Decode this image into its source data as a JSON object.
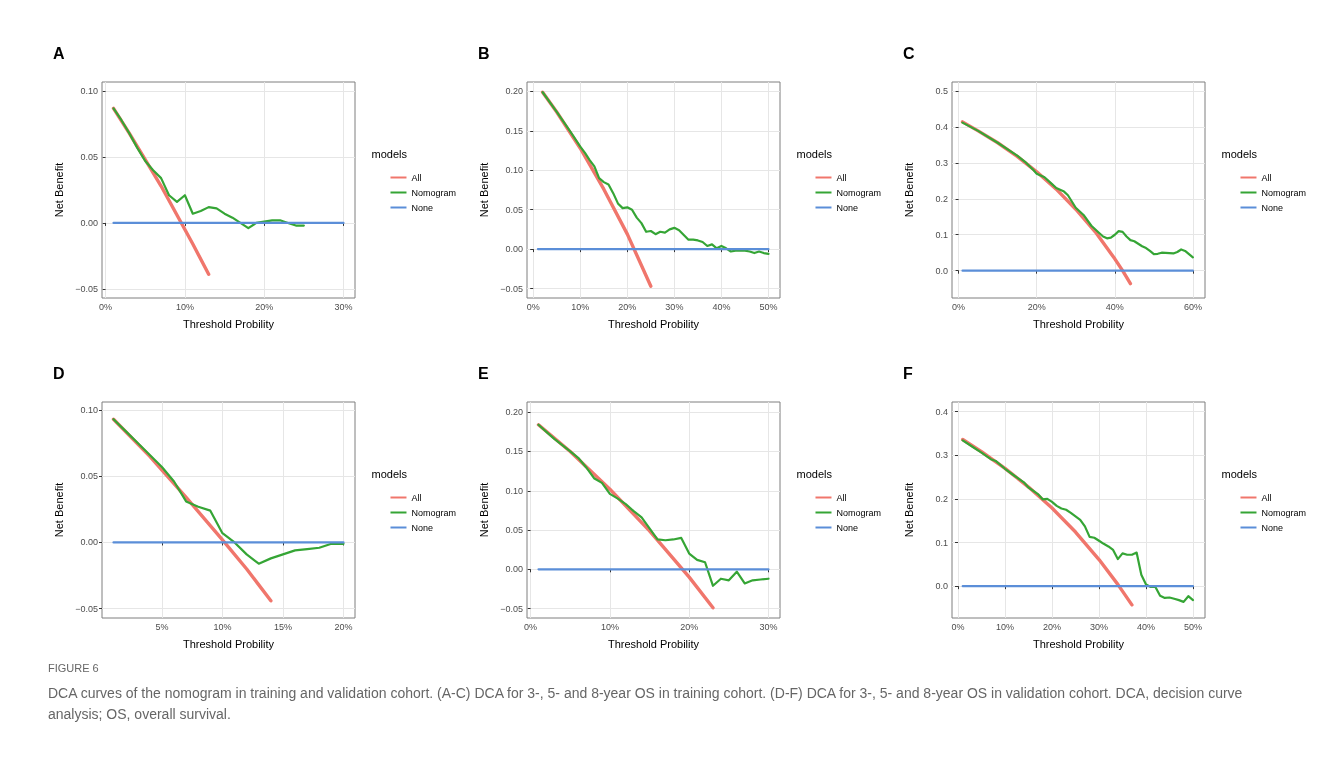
{
  "chart_data": [
    {
      "type": "line",
      "title": "A",
      "xlabel": "Threshold Probility",
      "ylabel": "Net Benefit",
      "legend_title": "models",
      "legend": "right",
      "grid": true,
      "marker": "none",
      "line_style": "solid",
      "annotations": [
        "FIGURE 6",
        "DCA curves of the nomogram in training and validation cohort. (A-C) DCA for 3-, 5- and 8-year OS in training cohort. (D-F) DCA for 3-, 5- and 8-year OS in validation cohort. DCA, decision curve analysis; OS, overall survival."
      ],
      "xlim": [
        -0.45,
        31.45
      ],
      "ylim": [
        -0.057,
        0.107
      ],
      "xticks": [
        {
          "value": 0,
          "label": "0%"
        },
        {
          "value": 10,
          "label": "10%"
        },
        {
          "value": 20,
          "label": "20%"
        },
        {
          "value": 30,
          "label": "30%"
        }
      ],
      "yticks": [
        {
          "value": -0.05,
          "label": "−0.05"
        },
        {
          "value": 0,
          "label": "0.00"
        },
        {
          "value": 0.05,
          "label": "0.05"
        },
        {
          "value": 0.1,
          "label": "0.10"
        }
      ],
      "series": [
        {
          "name": "All",
          "color": "#f0766c",
          "x": [
            1,
            3,
            5,
            7,
            9,
            11,
            13
          ],
          "values": [
            0.087,
            0.068,
            0.048,
            0.028,
            0.006,
            -0.016,
            -0.039
          ]
        },
        {
          "name": "Nomogram",
          "color": "#35a535",
          "x": [
            1,
            2,
            3,
            4,
            5,
            6,
            7,
            8,
            9,
            10,
            11,
            12,
            13,
            14,
            15,
            16,
            17,
            18,
            19,
            20,
            21,
            22,
            23,
            24,
            25
          ],
          "values": [
            0.087,
            0.078,
            0.068,
            0.057,
            0.047,
            0.04,
            0.034,
            0.021,
            0.016,
            0.021,
            0.007,
            0.009,
            0.012,
            0.011,
            0.007,
            0.004,
            0.0,
            -0.004,
            0.0,
            0.001,
            0.002,
            0.002,
            0.0,
            -0.002,
            -0.002
          ]
        },
        {
          "name": "None",
          "color": "#5b8ed8",
          "x": [
            1,
            30
          ],
          "values": [
            0,
            0
          ]
        }
      ]
    },
    {
      "type": "line",
      "title": "B",
      "xlabel": "Threshold Probility",
      "ylabel": "Net Benefit",
      "legend_title": "models",
      "legend": "right",
      "grid": true,
      "marker": "none",
      "line_style": "solid",
      "xlim": [
        -1.32,
        52.45
      ],
      "ylim": [
        -0.062,
        0.212
      ],
      "xticks": [
        {
          "value": 0,
          "label": "0%"
        },
        {
          "value": 10,
          "label": "10%"
        },
        {
          "value": 20,
          "label": "20%"
        },
        {
          "value": 30,
          "label": "30%"
        },
        {
          "value": 40,
          "label": "40%"
        },
        {
          "value": 50,
          "label": "50%"
        }
      ],
      "yticks": [
        {
          "value": -0.05,
          "label": "−0.05"
        },
        {
          "value": 0,
          "label": "0.00"
        },
        {
          "value": 0.05,
          "label": "0.05"
        },
        {
          "value": 0.1,
          "label": "0.10"
        },
        {
          "value": 0.15,
          "label": "0.15"
        },
        {
          "value": 0.2,
          "label": "0.20"
        }
      ],
      "series": [
        {
          "name": "All",
          "color": "#f0766c",
          "x": [
            2,
            5,
            10,
            15,
            20,
            25
          ],
          "values": [
            0.199,
            0.174,
            0.128,
            0.076,
            0.019,
            -0.047
          ]
        },
        {
          "name": "Nomogram",
          "color": "#35a535",
          "x": [
            2,
            5,
            8,
            10,
            11,
            12,
            13,
            14,
            15,
            16,
            17,
            18,
            19,
            20,
            21,
            22,
            23,
            24,
            25,
            26,
            27,
            28,
            29,
            30,
            31,
            32,
            33,
            34,
            35,
            36,
            37,
            38,
            39,
            40,
            41,
            42,
            43,
            44,
            45,
            46,
            47,
            48,
            49,
            50
          ],
          "values": [
            0.199,
            0.174,
            0.148,
            0.13,
            0.122,
            0.113,
            0.105,
            0.09,
            0.085,
            0.082,
            0.071,
            0.058,
            0.052,
            0.053,
            0.05,
            0.04,
            0.033,
            0.022,
            0.023,
            0.019,
            0.022,
            0.021,
            0.025,
            0.027,
            0.024,
            0.018,
            0.012,
            0.012,
            0.011,
            0.009,
            0.004,
            0.006,
            0.001,
            0.004,
            0.001,
            -0.003,
            -0.002,
            -0.002,
            -0.002,
            -0.003,
            -0.005,
            -0.003,
            -0.005,
            -0.006
          ]
        },
        {
          "name": "None",
          "color": "#5b8ed8",
          "x": [
            1,
            50
          ],
          "values": [
            0,
            0
          ]
        }
      ]
    },
    {
      "type": "line",
      "title": "C",
      "xlabel": "Threshold Probility",
      "ylabel": "Net Benefit",
      "legend_title": "models",
      "legend": "right",
      "grid": true,
      "marker": "none",
      "line_style": "solid",
      "xlim": [
        -1.69,
        63.1
      ],
      "ylim": [
        -0.076,
        0.525
      ],
      "xticks": [
        {
          "value": 0,
          "label": "0%"
        },
        {
          "value": 20,
          "label": "20%"
        },
        {
          "value": 40,
          "label": "40%"
        },
        {
          "value": 60,
          "label": "60%"
        }
      ],
      "yticks": [
        {
          "value": 0,
          "label": "0.0"
        },
        0.1,
        0.2,
        0.3,
        0.4,
        0.5
      ],
      "series": [
        {
          "name": "All",
          "color": "#f0766c",
          "x": [
            1,
            5,
            10,
            15,
            20,
            25,
            30,
            35,
            40,
            42,
            44
          ],
          "values": [
            0.414,
            0.389,
            0.356,
            0.318,
            0.275,
            0.227,
            0.171,
            0.108,
            0.033,
            0.0,
            -0.036
          ]
        },
        {
          "name": "Nomogram",
          "color": "#35a535",
          "x": [
            1,
            5,
            10,
            15,
            17,
            19,
            20,
            22,
            24,
            25,
            27,
            28,
            30,
            32,
            34,
            36,
            37,
            38,
            39,
            40,
            41,
            42,
            43,
            44,
            45,
            46,
            47,
            48,
            49,
            50,
            51,
            52,
            54,
            55,
            56,
            57,
            58,
            59,
            60
          ],
          "values": [
            0.412,
            0.389,
            0.356,
            0.32,
            0.303,
            0.282,
            0.27,
            0.26,
            0.24,
            0.23,
            0.22,
            0.21,
            0.175,
            0.155,
            0.125,
            0.105,
            0.095,
            0.09,
            0.092,
            0.1,
            0.11,
            0.108,
            0.095,
            0.085,
            0.082,
            0.075,
            0.068,
            0.063,
            0.055,
            0.046,
            0.047,
            0.05,
            0.049,
            0.048,
            0.052,
            0.059,
            0.055,
            0.046,
            0.037
          ]
        },
        {
          "name": "None",
          "color": "#5b8ed8",
          "x": [
            1,
            60
          ],
          "values": [
            0,
            0
          ]
        }
      ]
    },
    {
      "type": "line",
      "title": "D",
      "xlabel": "Threshold Probility",
      "ylabel": "Net Benefit",
      "legend_title": "models",
      "legend": "right",
      "grid": true,
      "marker": "none",
      "line_style": "solid",
      "xlim": [
        0.05,
        20.95
      ],
      "ylim": [
        -0.057,
        0.106
      ],
      "xticks": [
        {
          "value": 5,
          "label": "5%"
        },
        {
          "value": 10,
          "label": "10%"
        },
        {
          "value": 15,
          "label": "15%"
        },
        {
          "value": 20,
          "label": "20%"
        }
      ],
      "yticks": [
        {
          "value": -0.05,
          "label": "−0.05"
        },
        {
          "value": 0,
          "label": "0.00"
        },
        {
          "value": 0.05,
          "label": "0.05"
        },
        {
          "value": 0.1,
          "label": "0.10"
        }
      ],
      "series": [
        {
          "name": "All",
          "color": "#f0766c",
          "x": [
            1,
            4,
            7,
            10,
            12,
            14
          ],
          "values": [
            0.093,
            0.065,
            0.034,
            0.002,
            -0.02,
            -0.044
          ]
        },
        {
          "name": "Nomogram",
          "color": "#35a535",
          "x": [
            1,
            2,
            3,
            4,
            5,
            6,
            7,
            8,
            9,
            10,
            11,
            12,
            13,
            14,
            15,
            16,
            17,
            18,
            19,
            20
          ],
          "values": [
            0.093,
            0.084,
            0.075,
            0.066,
            0.057,
            0.046,
            0.031,
            0.027,
            0.024,
            0.007,
            0.0,
            -0.009,
            -0.016,
            -0.012,
            -0.009,
            -0.006,
            -0.005,
            -0.004,
            -0.001,
            -0.001
          ]
        },
        {
          "name": "None",
          "color": "#5b8ed8",
          "x": [
            1,
            20
          ],
          "values": [
            0,
            0
          ]
        }
      ]
    },
    {
      "type": "line",
      "title": "E",
      "xlabel": "Threshold Probility",
      "ylabel": "Net Benefit",
      "legend_title": "models",
      "legend": "right",
      "grid": true,
      "marker": "none",
      "line_style": "solid",
      "xlim": [
        -0.45,
        31.45
      ],
      "ylim": [
        -0.062,
        0.213
      ],
      "xticks": [
        {
          "value": 0,
          "label": "0%"
        },
        {
          "value": 10,
          "label": "10%"
        },
        {
          "value": 20,
          "label": "20%"
        },
        {
          "value": 30,
          "label": "30%"
        }
      ],
      "yticks": [
        {
          "value": -0.05,
          "label": "−0.05"
        },
        {
          "value": 0,
          "label": "0.00"
        },
        {
          "value": 0.05,
          "label": "0.05"
        },
        {
          "value": 0.1,
          "label": "0.10"
        },
        {
          "value": 0.15,
          "label": "0.15"
        },
        {
          "value": 0.2,
          "label": "0.20"
        }
      ],
      "series": [
        {
          "name": "All",
          "color": "#f0766c",
          "x": [
            1,
            5,
            10,
            15,
            20,
            23
          ],
          "values": [
            0.184,
            0.15,
            0.102,
            0.049,
            -0.01,
            -0.049
          ]
        },
        {
          "name": "Nomogram",
          "color": "#35a535",
          "x": [
            1,
            2,
            3,
            4,
            5,
            6,
            7,
            8,
            9,
            10,
            11,
            12,
            13,
            14,
            15,
            16,
            17,
            18,
            19,
            20,
            21,
            22,
            23,
            24,
            25,
            26,
            27,
            28,
            29,
            30
          ],
          "values": [
            0.184,
            0.175,
            0.166,
            0.158,
            0.15,
            0.142,
            0.13,
            0.116,
            0.11,
            0.096,
            0.09,
            0.083,
            0.074,
            0.066,
            0.052,
            0.038,
            0.037,
            0.038,
            0.04,
            0.02,
            0.012,
            0.009,
            -0.021,
            -0.012,
            -0.014,
            -0.003,
            -0.018,
            -0.014,
            -0.013,
            -0.012
          ]
        },
        {
          "name": "None",
          "color": "#5b8ed8",
          "x": [
            1,
            30
          ],
          "values": [
            0,
            0
          ]
        }
      ]
    },
    {
      "type": "line",
      "title": "F",
      "xlabel": "Threshold Probility",
      "ylabel": "Net Benefit",
      "legend_title": "models",
      "legend": "right",
      "grid": true,
      "marker": "none",
      "line_style": "solid",
      "xlim": [
        -1.28,
        52.55
      ],
      "ylim": [
        -0.073,
        0.422
      ],
      "xticks": [
        {
          "value": 0,
          "label": "0%"
        },
        {
          "value": 10,
          "label": "10%"
        },
        {
          "value": 20,
          "label": "20%"
        },
        {
          "value": 30,
          "label": "30%"
        },
        {
          "value": 40,
          "label": "40%"
        },
        {
          "value": 50,
          "label": "50%"
        }
      ],
      "yticks": [
        {
          "value": 0,
          "label": "0.0"
        },
        0.1,
        0.2,
        0.3,
        0.4
      ],
      "series": [
        {
          "name": "All",
          "color": "#f0766c",
          "x": [
            1,
            5,
            10,
            15,
            20,
            25,
            30,
            34,
            37
          ],
          "values": [
            0.336,
            0.308,
            0.27,
            0.227,
            0.179,
            0.124,
            0.061,
            0.004,
            -0.043
          ]
        },
        {
          "name": "Nomogram",
          "color": "#35a535",
          "x": [
            1,
            3,
            5,
            7,
            8,
            10,
            12,
            14,
            15,
            17,
            18,
            19,
            20,
            21,
            22,
            23,
            24,
            25,
            26,
            27,
            28,
            29,
            30,
            31,
            32,
            33,
            34,
            35,
            36,
            37,
            38,
            39,
            40,
            41,
            42,
            43,
            44,
            45,
            46,
            47,
            48,
            49,
            50
          ],
          "values": [
            0.334,
            0.32,
            0.306,
            0.291,
            0.287,
            0.269,
            0.253,
            0.238,
            0.226,
            0.211,
            0.199,
            0.2,
            0.193,
            0.184,
            0.178,
            0.175,
            0.168,
            0.16,
            0.152,
            0.137,
            0.113,
            0.111,
            0.104,
            0.097,
            0.091,
            0.083,
            0.062,
            0.075,
            0.072,
            0.072,
            0.077,
            0.026,
            0.004,
            -0.002,
            -0.002,
            -0.022,
            -0.027,
            -0.026,
            -0.029,
            -0.032,
            -0.036,
            -0.023,
            -0.032
          ]
        },
        {
          "name": "None",
          "color": "#5b8ed8",
          "x": [
            1,
            50
          ],
          "values": [
            0,
            0
          ]
        }
      ]
    }
  ]
}
